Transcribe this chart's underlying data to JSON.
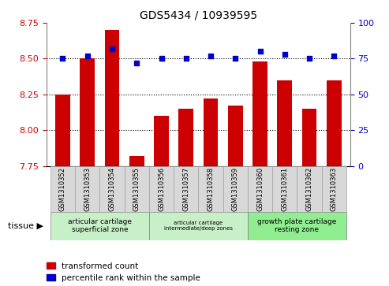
{
  "title": "GDS5434 / 10939595",
  "samples": [
    "GSM1310352",
    "GSM1310353",
    "GSM1310354",
    "GSM1310355",
    "GSM1310356",
    "GSM1310357",
    "GSM1310358",
    "GSM1310359",
    "GSM1310360",
    "GSM1310361",
    "GSM1310362",
    "GSM1310363"
  ],
  "red_values": [
    8.25,
    8.5,
    8.7,
    7.82,
    8.1,
    8.15,
    8.22,
    8.17,
    8.48,
    8.35,
    8.15,
    8.35
  ],
  "blue_values": [
    75,
    77,
    82,
    72,
    75,
    75,
    77,
    75,
    80,
    78,
    75,
    77
  ],
  "ylim_left": [
    7.75,
    8.75
  ],
  "ylim_right": [
    0,
    100
  ],
  "yticks_left": [
    7.75,
    8.0,
    8.25,
    8.5,
    8.75
  ],
  "yticks_right": [
    0,
    25,
    50,
    75,
    100
  ],
  "red_color": "#cc0000",
  "blue_color": "#0000cc",
  "bar_width": 0.6,
  "group_configs": [
    {
      "start": -0.5,
      "end": 3.5,
      "label": "articular cartilage\nsuperficial zone",
      "color": "#c8f0c8",
      "fontsize": 9
    },
    {
      "start": 3.5,
      "end": 7.5,
      "label": "articular cartilage\nintermediate/deep zones",
      "color": "#c8f0c8",
      "fontsize": 7
    },
    {
      "start": 7.5,
      "end": 11.5,
      "label": "growth plate cartilage\nresting zone",
      "color": "#90ee90",
      "fontsize": 9
    }
  ],
  "tissue_label": "tissue",
  "legend_red": "transformed count",
  "legend_blue": "percentile rank within the sample",
  "dotted_line_color": "#000000",
  "grid_yticks": [
    8.0,
    8.25,
    8.5
  ],
  "xlim": [
    -0.65,
    11.65
  ],
  "sample_box_color": "#d8d8d8",
  "sample_box_edge": "#a0a0a0",
  "spine_color": "#808080"
}
